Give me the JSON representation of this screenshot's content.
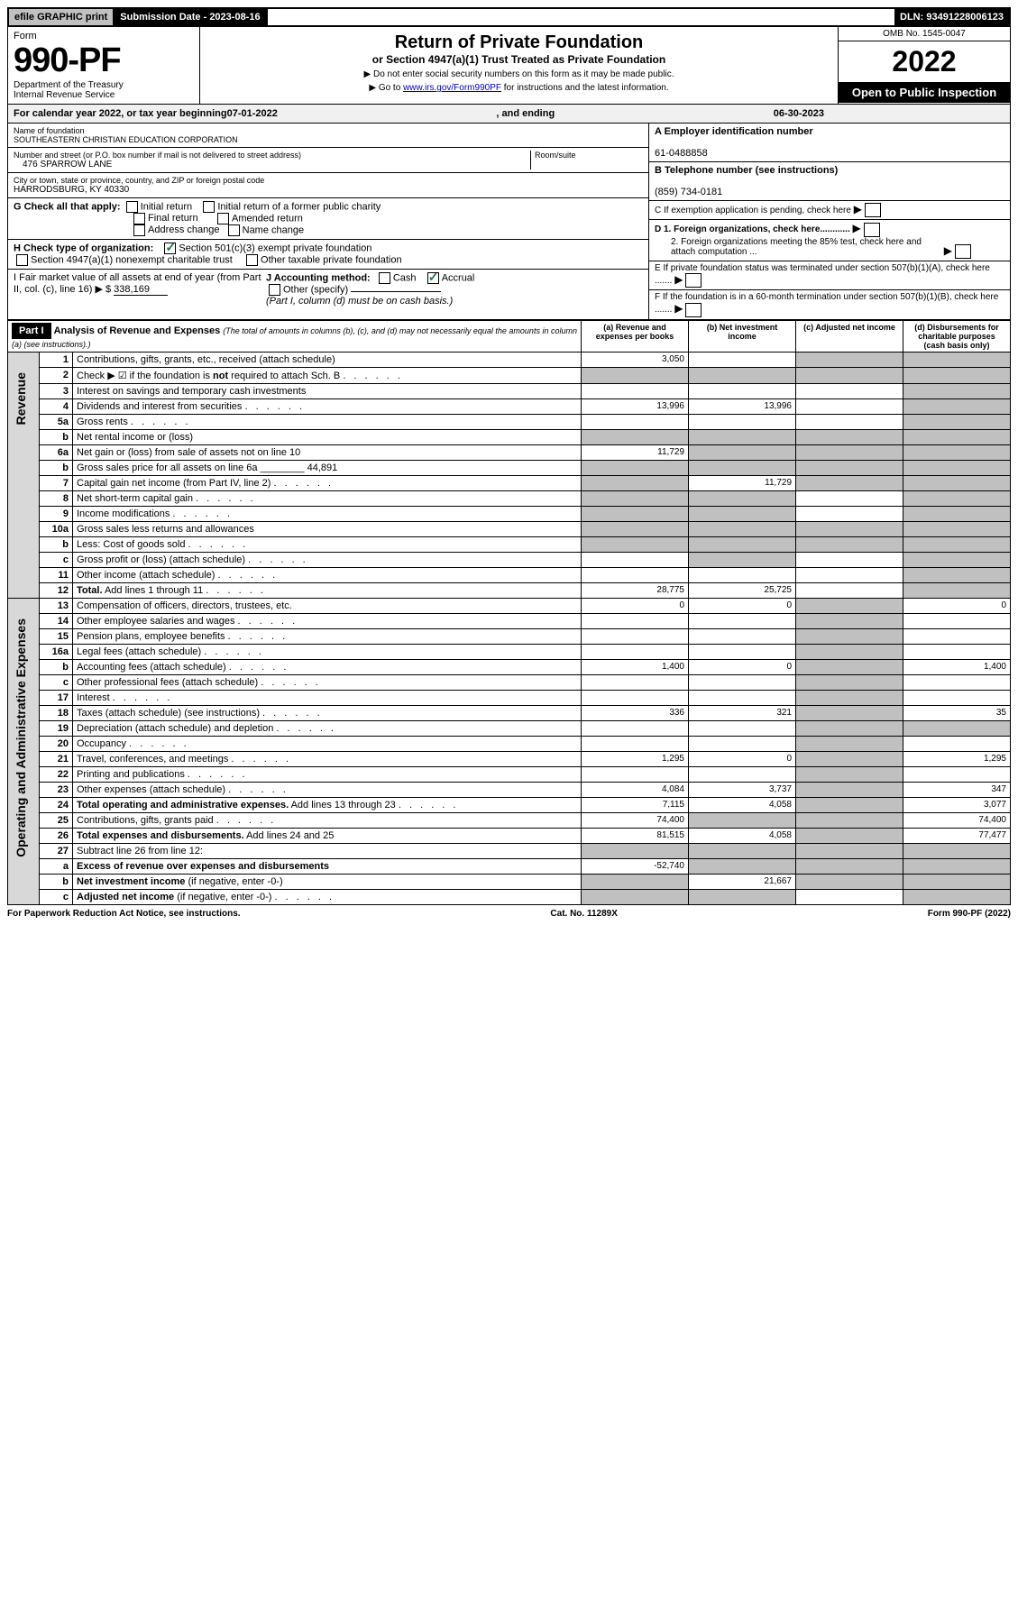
{
  "topbar": {
    "efile": "efile GRAPHIC print",
    "submission": "Submission Date - 2023-08-16",
    "dln": "DLN: 93491228006123"
  },
  "header": {
    "form_label": "Form",
    "form_no": "990-PF",
    "dept": "Department of the Treasury",
    "irs": "Internal Revenue Service",
    "title": "Return of Private Foundation",
    "subtitle": "or Section 4947(a)(1) Trust Treated as Private Foundation",
    "note1": "▶ Do not enter social security numbers on this form as it may be made public.",
    "note2_pre": "▶ Go to ",
    "note2_link": "www.irs.gov/Form990PF",
    "note2_post": " for instructions and the latest information.",
    "omb": "OMB No. 1545-0047",
    "year": "2022",
    "open": "Open to Public Inspection"
  },
  "cal_year": {
    "prefix": "For calendar year 2022, or tax year beginning ",
    "begin": "07-01-2022",
    "mid": ", and ending ",
    "end": "06-30-2023"
  },
  "info": {
    "name_label": "Name of foundation",
    "name": "SOUTHEASTERN CHRISTIAN EDUCATION CORPORATION",
    "addr_label": "Number and street (or P.O. box number if mail is not delivered to street address)",
    "addr": "476 SPARROW LANE",
    "room_label": "Room/suite",
    "city_label": "City or town, state or province, country, and ZIP or foreign postal code",
    "city": "HARRODSBURG, KY  40330",
    "ein_label": "A Employer identification number",
    "ein": "61-0488858",
    "tel_label": "B Telephone number (see instructions)",
    "tel": "(859) 734-0181",
    "c_label": "C If exemption application is pending, check here",
    "d1": "D 1. Foreign organizations, check here............",
    "d2": "2. Foreign organizations meeting the 85% test, check here and attach computation ...",
    "e_label": "E  If private foundation status was terminated under section 507(b)(1)(A), check here .......",
    "f_label": "F  If the foundation is in a 60-month termination under section 507(b)(1)(B), check here .......",
    "g_label": "G Check all that apply:",
    "g_opts": [
      "Initial return",
      "Initial return of a former public charity",
      "Final return",
      "Amended return",
      "Address change",
      "Name change"
    ],
    "h_label": "H Check type of organization:",
    "h_opt1": "Section 501(c)(3) exempt private foundation",
    "h_opt2": "Section 4947(a)(1) nonexempt charitable trust",
    "h_opt3": "Other taxable private foundation",
    "i_label": "I Fair market value of all assets at end of year (from Part II, col. (c), line 16) ▶ $",
    "i_val": "338,169",
    "j_label": "J Accounting method:",
    "j_cash": "Cash",
    "j_accrual": "Accrual",
    "j_other": "Other (specify)",
    "j_note": "(Part I, column (d) must be on cash basis.)"
  },
  "part1": {
    "label": "Part I",
    "title": "Analysis of Revenue and Expenses",
    "title_note": "(The total of amounts in columns (b), (c), and (d) may not necessarily equal the amounts in column (a) (see instructions).)",
    "col_a": "(a) Revenue and expenses per books",
    "col_b": "(b) Net investment income",
    "col_c": "(c) Adjusted net income",
    "col_d": "(d) Disbursements for charitable purposes (cash basis only)",
    "side_rev": "Revenue",
    "side_exp": "Operating and Administrative Expenses"
  },
  "rows": [
    {
      "n": "1",
      "d": "Contributions, gifts, grants, etc., received (attach schedule)",
      "a": "3,050",
      "b": "",
      "c": "g",
      "dcol": "g"
    },
    {
      "n": "2",
      "d": "Check ▶ ☑ if the foundation is <b>not</b> required to attach Sch. B",
      "dots": true,
      "a": "g",
      "b": "g",
      "c": "g",
      "dcol": "g"
    },
    {
      "n": "3",
      "d": "Interest on savings and temporary cash investments",
      "a": "",
      "b": "",
      "c": "",
      "dcol": "g"
    },
    {
      "n": "4",
      "d": "Dividends and interest from securities",
      "dots": true,
      "a": "13,996",
      "b": "13,996",
      "c": "",
      "dcol": "g"
    },
    {
      "n": "5a",
      "d": "Gross rents",
      "dots": true,
      "a": "",
      "b": "",
      "c": "",
      "dcol": "g"
    },
    {
      "n": "b",
      "d": "Net rental income or (loss)",
      "a": "g",
      "b": "g",
      "c": "g",
      "dcol": "g"
    },
    {
      "n": "6a",
      "d": "Net gain or (loss) from sale of assets not on line 10",
      "a": "11,729",
      "b": "g",
      "c": "g",
      "dcol": "g"
    },
    {
      "n": "b",
      "d": "Gross sales price for all assets on line 6a ________ 44,891",
      "a": "g",
      "b": "g",
      "c": "g",
      "dcol": "g"
    },
    {
      "n": "7",
      "d": "Capital gain net income (from Part IV, line 2)",
      "dots": true,
      "a": "g",
      "b": "11,729",
      "c": "g",
      "dcol": "g"
    },
    {
      "n": "8",
      "d": "Net short-term capital gain",
      "dots": true,
      "a": "g",
      "b": "g",
      "c": "",
      "dcol": "g"
    },
    {
      "n": "9",
      "d": "Income modifications",
      "dots": true,
      "a": "g",
      "b": "g",
      "c": "",
      "dcol": "g"
    },
    {
      "n": "10a",
      "d": "Gross sales less returns and allowances",
      "a": "g",
      "b": "g",
      "c": "g",
      "dcol": "g"
    },
    {
      "n": "b",
      "d": "Less: Cost of goods sold",
      "dots": true,
      "a": "g",
      "b": "g",
      "c": "g",
      "dcol": "g"
    },
    {
      "n": "c",
      "d": "Gross profit or (loss) (attach schedule)",
      "dots": true,
      "a": "",
      "b": "g",
      "c": "",
      "dcol": "g"
    },
    {
      "n": "11",
      "d": "Other income (attach schedule)",
      "dots": true,
      "a": "",
      "b": "",
      "c": "",
      "dcol": "g"
    },
    {
      "n": "12",
      "d": "<b>Total.</b> Add lines 1 through 11",
      "dots": true,
      "a": "28,775",
      "b": "25,725",
      "c": "",
      "dcol": "g"
    },
    {
      "n": "13",
      "d": "Compensation of officers, directors, trustees, etc.",
      "a": "0",
      "b": "0",
      "c": "g",
      "dcol": "0"
    },
    {
      "n": "14",
      "d": "Other employee salaries and wages",
      "dots": true,
      "a": "",
      "b": "",
      "c": "g",
      "dcol": ""
    },
    {
      "n": "15",
      "d": "Pension plans, employee benefits",
      "dots": true,
      "a": "",
      "b": "",
      "c": "g",
      "dcol": ""
    },
    {
      "n": "16a",
      "d": "Legal fees (attach schedule)",
      "dots": true,
      "a": "",
      "b": "",
      "c": "g",
      "dcol": ""
    },
    {
      "n": "b",
      "d": "Accounting fees (attach schedule)",
      "dots": true,
      "a": "1,400",
      "b": "0",
      "c": "g",
      "dcol": "1,400"
    },
    {
      "n": "c",
      "d": "Other professional fees (attach schedule)",
      "dots": true,
      "a": "",
      "b": "",
      "c": "g",
      "dcol": ""
    },
    {
      "n": "17",
      "d": "Interest",
      "dots": true,
      "a": "",
      "b": "",
      "c": "g",
      "dcol": ""
    },
    {
      "n": "18",
      "d": "Taxes (attach schedule) (see instructions)",
      "dots": true,
      "a": "336",
      "b": "321",
      "c": "g",
      "dcol": "35"
    },
    {
      "n": "19",
      "d": "Depreciation (attach schedule) and depletion",
      "dots": true,
      "a": "",
      "b": "",
      "c": "g",
      "dcol": "g"
    },
    {
      "n": "20",
      "d": "Occupancy",
      "dots": true,
      "a": "",
      "b": "",
      "c": "g",
      "dcol": ""
    },
    {
      "n": "21",
      "d": "Travel, conferences, and meetings",
      "dots": true,
      "a": "1,295",
      "b": "0",
      "c": "g",
      "dcol": "1,295"
    },
    {
      "n": "22",
      "d": "Printing and publications",
      "dots": true,
      "a": "",
      "b": "",
      "c": "g",
      "dcol": ""
    },
    {
      "n": "23",
      "d": "Other expenses (attach schedule)",
      "dots": true,
      "a": "4,084",
      "b": "3,737",
      "c": "g",
      "dcol": "347"
    },
    {
      "n": "24",
      "d": "<b>Total operating and administrative expenses.</b> Add lines 13 through 23",
      "dots": true,
      "a": "7,115",
      "b": "4,058",
      "c": "g",
      "dcol": "3,077"
    },
    {
      "n": "25",
      "d": "Contributions, gifts, grants paid",
      "dots": true,
      "a": "74,400",
      "b": "g",
      "c": "g",
      "dcol": "74,400"
    },
    {
      "n": "26",
      "d": "<b>Total expenses and disbursements.</b> Add lines 24 and 25",
      "a": "81,515",
      "b": "4,058",
      "c": "g",
      "dcol": "77,477"
    },
    {
      "n": "27",
      "d": "Subtract line 26 from line 12:",
      "a": "g",
      "b": "g",
      "c": "g",
      "dcol": "g"
    },
    {
      "n": "a",
      "d": "<b>Excess of revenue over expenses and disbursements</b>",
      "a": "-52,740",
      "b": "g",
      "c": "g",
      "dcol": "g"
    },
    {
      "n": "b",
      "d": "<b>Net investment income</b> (if negative, enter -0-)",
      "a": "g",
      "b": "21,667",
      "c": "g",
      "dcol": "g"
    },
    {
      "n": "c",
      "d": "<b>Adjusted net income</b> (if negative, enter -0-)",
      "dots": true,
      "a": "g",
      "b": "g",
      "c": "",
      "dcol": "g"
    }
  ],
  "footer": {
    "pra": "For Paperwork Reduction Act Notice, see instructions.",
    "cat": "Cat. No. 11289X",
    "form": "Form 990-PF (2022)"
  }
}
